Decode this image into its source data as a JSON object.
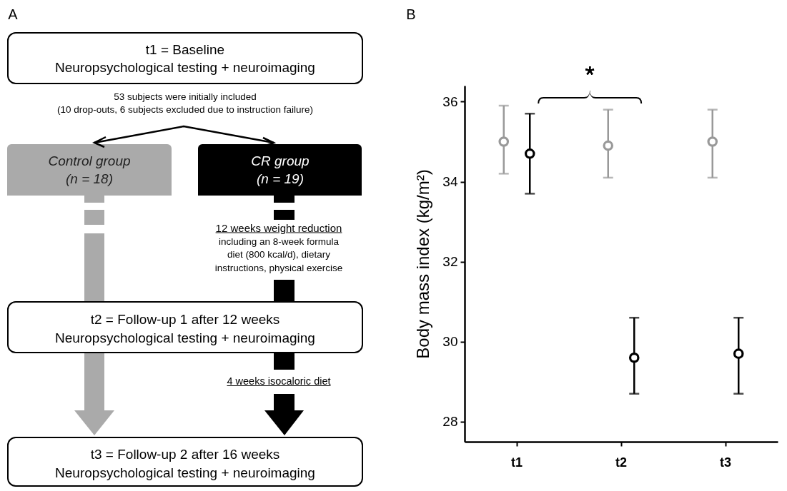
{
  "chart_data": [
    {
      "type": "other",
      "title": "A",
      "annotations": [
        "t1 = Baseline",
        "Neuropsychological testing + neuroimaging",
        "53 subjects were initially included",
        "(10 drop-outs, 6 subjects excluded due to instruction failure)",
        "Control group",
        "(n = 18)",
        "CR group",
        "(n = 19)",
        "12 weeks weight reduction",
        "including an 8-week formula",
        "diet (800 kcal/d), dietary",
        "instructions, physical exercise",
        "t2 = Follow-up 1 after 12 weeks",
        "Neuropsychological testing + neuroimaging",
        "4 weeks isocaloric diet",
        "t3 = Follow-up 2 after 16 weeks",
        "Neuropsychological testing + neuroimaging"
      ]
    },
    {
      "type": "scatter",
      "title": "B",
      "ylabel": "Body mass index (kg/m²)",
      "categories": [
        "t1",
        "t2",
        "t3"
      ],
      "series": [
        {
          "color": "#999999",
          "values": [
            35.0,
            34.9,
            35.0
          ],
          "errors": [
            [
              34.2,
              35.9
            ],
            [
              34.1,
              35.8
            ],
            [
              34.1,
              35.8
            ]
          ]
        },
        {
          "color": "#000000",
          "values": [
            34.7,
            29.6,
            29.7
          ],
          "errors": [
            [
              33.7,
              35.7
            ],
            [
              28.7,
              30.6
            ],
            [
              28.7,
              30.6
            ]
          ]
        }
      ],
      "ylim": [
        27.5,
        36.4
      ],
      "yticks": [
        28,
        30,
        32,
        34,
        36
      ],
      "marker": "circle",
      "grid": false,
      "legend": false,
      "annotations": [
        "*"
      ]
    }
  ]
}
